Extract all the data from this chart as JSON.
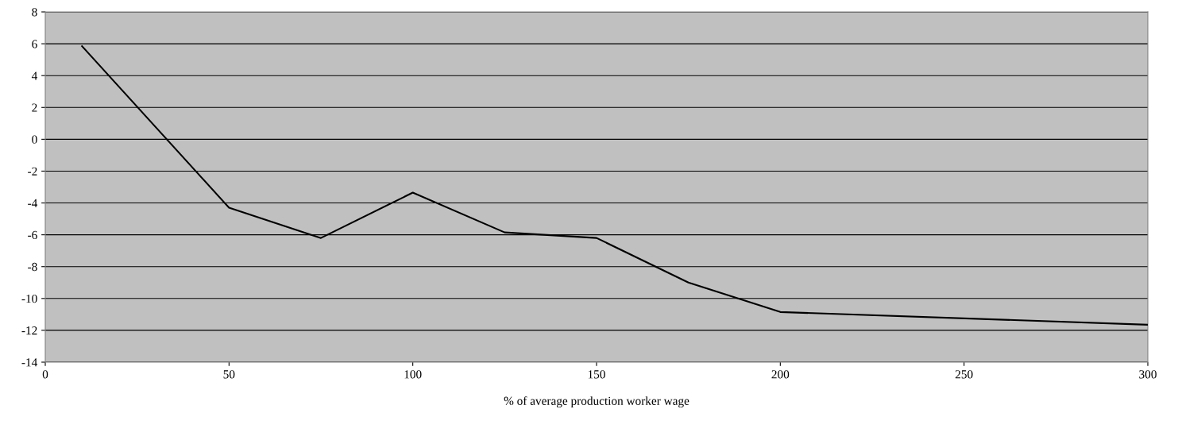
{
  "chart_data": {
    "type": "line",
    "xlabel": "% of average production worker wage",
    "x": [
      10,
      50,
      75,
      100,
      125,
      150,
      175,
      200,
      300
    ],
    "series": [
      {
        "color": "#000000",
        "values": [
          5.85,
          -4.3,
          -6.2,
          -3.35,
          -5.85,
          -6.2,
          -9.0,
          -10.85,
          -11.65
        ]
      }
    ],
    "xlim": [
      0,
      300
    ],
    "xticks": [
      0,
      50,
      100,
      150,
      200,
      250,
      300
    ],
    "ylim": [
      -14,
      8
    ],
    "yticks": [
      -14,
      -12,
      -10,
      -8,
      -6,
      -4,
      -2,
      0,
      2,
      4,
      6,
      8
    ],
    "grid": "y",
    "legend": false,
    "marker": "none",
    "line_style": "solid"
  }
}
